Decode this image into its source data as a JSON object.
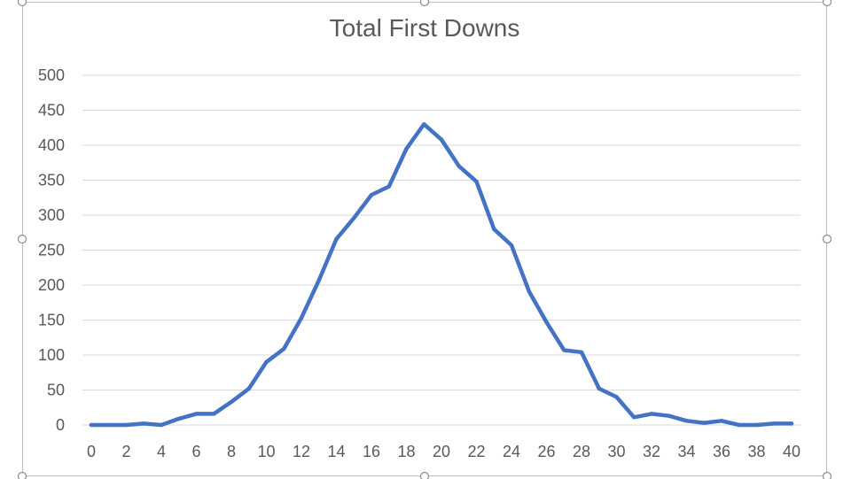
{
  "chart_data": {
    "type": "line",
    "title": "Total First Downs",
    "xlabel": "",
    "ylabel": "",
    "xlim": [
      0,
      40
    ],
    "ylim": [
      0,
      500
    ],
    "x_ticks": [
      "0",
      "2",
      "4",
      "6",
      "8",
      "10",
      "12",
      "14",
      "16",
      "18",
      "20",
      "22",
      "24",
      "26",
      "28",
      "30",
      "32",
      "34",
      "36",
      "38",
      "40"
    ],
    "y_ticks": [
      "0",
      "50",
      "100",
      "150",
      "200",
      "250",
      "300",
      "350",
      "400",
      "450",
      "500"
    ],
    "grid": true,
    "legend": "none",
    "colors": {
      "line": "#4472c4",
      "grid": "#d9d9d9",
      "text": "#595959"
    },
    "series": [
      {
        "x": [
          0,
          1,
          2,
          3,
          4,
          5,
          6,
          7,
          8,
          9,
          10,
          11,
          12,
          13,
          14,
          15,
          16,
          17,
          18,
          19,
          20,
          21,
          22,
          23,
          24,
          25,
          26,
          27,
          28,
          29,
          30,
          31,
          32,
          33,
          34,
          35,
          36,
          37,
          38,
          39,
          40
        ],
        "values": [
          0,
          0,
          0,
          2,
          0,
          9,
          16,
          16,
          33,
          52,
          90,
          109,
          153,
          207,
          266,
          296,
          329,
          341,
          395,
          430,
          408,
          370,
          348,
          280,
          257,
          191,
          147,
          107,
          104,
          52,
          40,
          11,
          16,
          13,
          6,
          3,
          6,
          0,
          0,
          2,
          2
        ]
      }
    ]
  }
}
